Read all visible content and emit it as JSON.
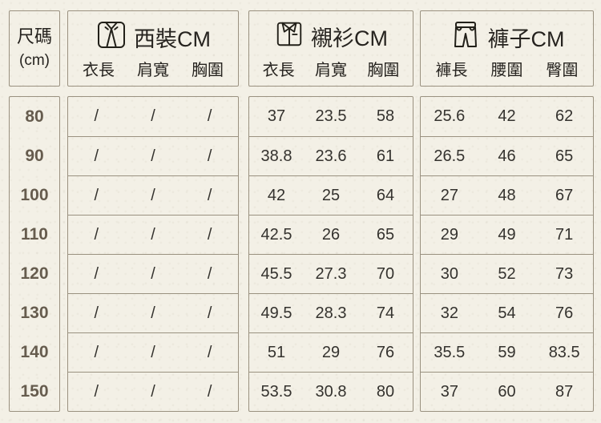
{
  "table": {
    "size_column": {
      "title": "尺碼",
      "unit": "(cm)",
      "sizes": [
        "80",
        "90",
        "100",
        "110",
        "120",
        "130",
        "140",
        "150"
      ]
    },
    "sections": [
      {
        "title": "西裝CM",
        "icon": "suit-jacket-icon",
        "columns": [
          "衣長",
          "肩寬",
          "胸圍"
        ],
        "rows": [
          [
            "/",
            "/",
            "/"
          ],
          [
            "/",
            "/",
            "/"
          ],
          [
            "/",
            "/",
            "/"
          ],
          [
            "/",
            "/",
            "/"
          ],
          [
            "/",
            "/",
            "/"
          ],
          [
            "/",
            "/",
            "/"
          ],
          [
            "/",
            "/",
            "/"
          ],
          [
            "/",
            "/",
            "/"
          ]
        ]
      },
      {
        "title": "襯衫CM",
        "icon": "dress-shirt-icon",
        "columns": [
          "衣長",
          "肩寬",
          "胸圍"
        ],
        "rows": [
          [
            "37",
            "23.5",
            "58"
          ],
          [
            "38.8",
            "23.6",
            "61"
          ],
          [
            "42",
            "25",
            "64"
          ],
          [
            "42.5",
            "26",
            "65"
          ],
          [
            "45.5",
            "27.3",
            "70"
          ],
          [
            "49.5",
            "28.3",
            "74"
          ],
          [
            "51",
            "29",
            "76"
          ],
          [
            "53.5",
            "30.8",
            "80"
          ]
        ]
      },
      {
        "title": "褲子CM",
        "icon": "pants-icon",
        "columns": [
          "褲長",
          "腰圍",
          "臀圍"
        ],
        "rows": [
          [
            "25.6",
            "42",
            "62"
          ],
          [
            "26.5",
            "46",
            "65"
          ],
          [
            "27",
            "48",
            "67"
          ],
          [
            "29",
            "49",
            "71"
          ],
          [
            "30",
            "52",
            "73"
          ],
          [
            "32",
            "54",
            "76"
          ],
          [
            "35.5",
            "59",
            "83.5"
          ],
          [
            "37",
            "60",
            "87"
          ]
        ]
      }
    ]
  },
  "colors": {
    "background": "#f3f0e6",
    "border": "#9a9180",
    "header_text": "#26231f",
    "size_text": "#665c4e",
    "data_text": "#34322e"
  }
}
